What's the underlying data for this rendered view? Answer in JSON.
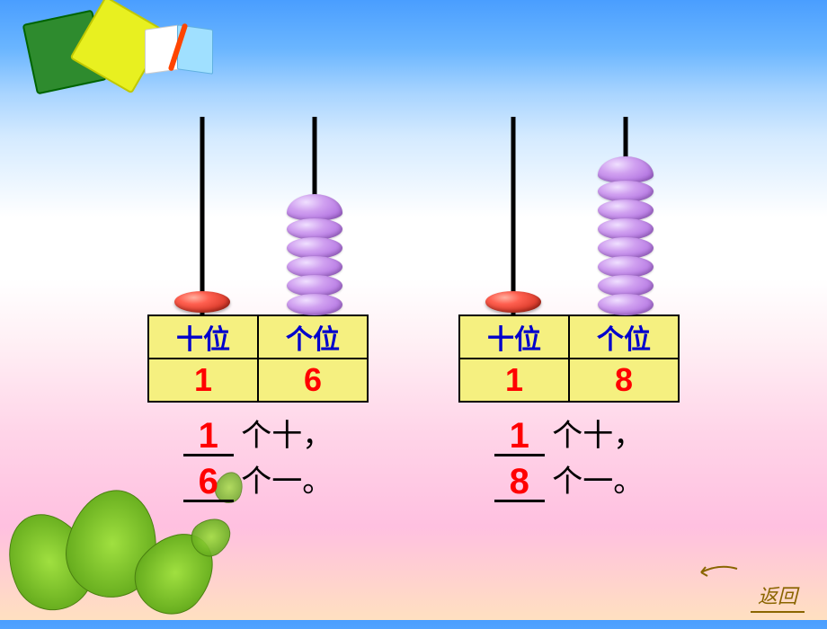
{
  "decoration": {
    "square1_color": "#2e8b2e",
    "square2_color": "#e8f020"
  },
  "abacus": [
    {
      "tens": {
        "label": "十位",
        "beads": 1,
        "bead_color": "red",
        "digit": "1"
      },
      "ones": {
        "label": "个位",
        "beads": 6,
        "bead_color": "purple",
        "digit": "6"
      },
      "sentence": {
        "tens_count": "1",
        "tens_unit": "个十，",
        "ones_count": "6",
        "ones_unit": "个一。"
      }
    },
    {
      "tens": {
        "label": "十位",
        "beads": 1,
        "bead_color": "red",
        "digit": "1"
      },
      "ones": {
        "label": "个位",
        "beads": 8,
        "bead_color": "purple",
        "digit": "8"
      },
      "sentence": {
        "tens_count": "1",
        "tens_unit": "个十，",
        "ones_count": "8",
        "ones_unit": "个一。"
      }
    }
  ],
  "return_label": "返回",
  "colors": {
    "header_text": "#0000cc",
    "digit_text": "#ff0000",
    "cell_bg": "#f5f080",
    "bead_red": "#ff6050",
    "bead_purple": "#d0a0f0"
  }
}
